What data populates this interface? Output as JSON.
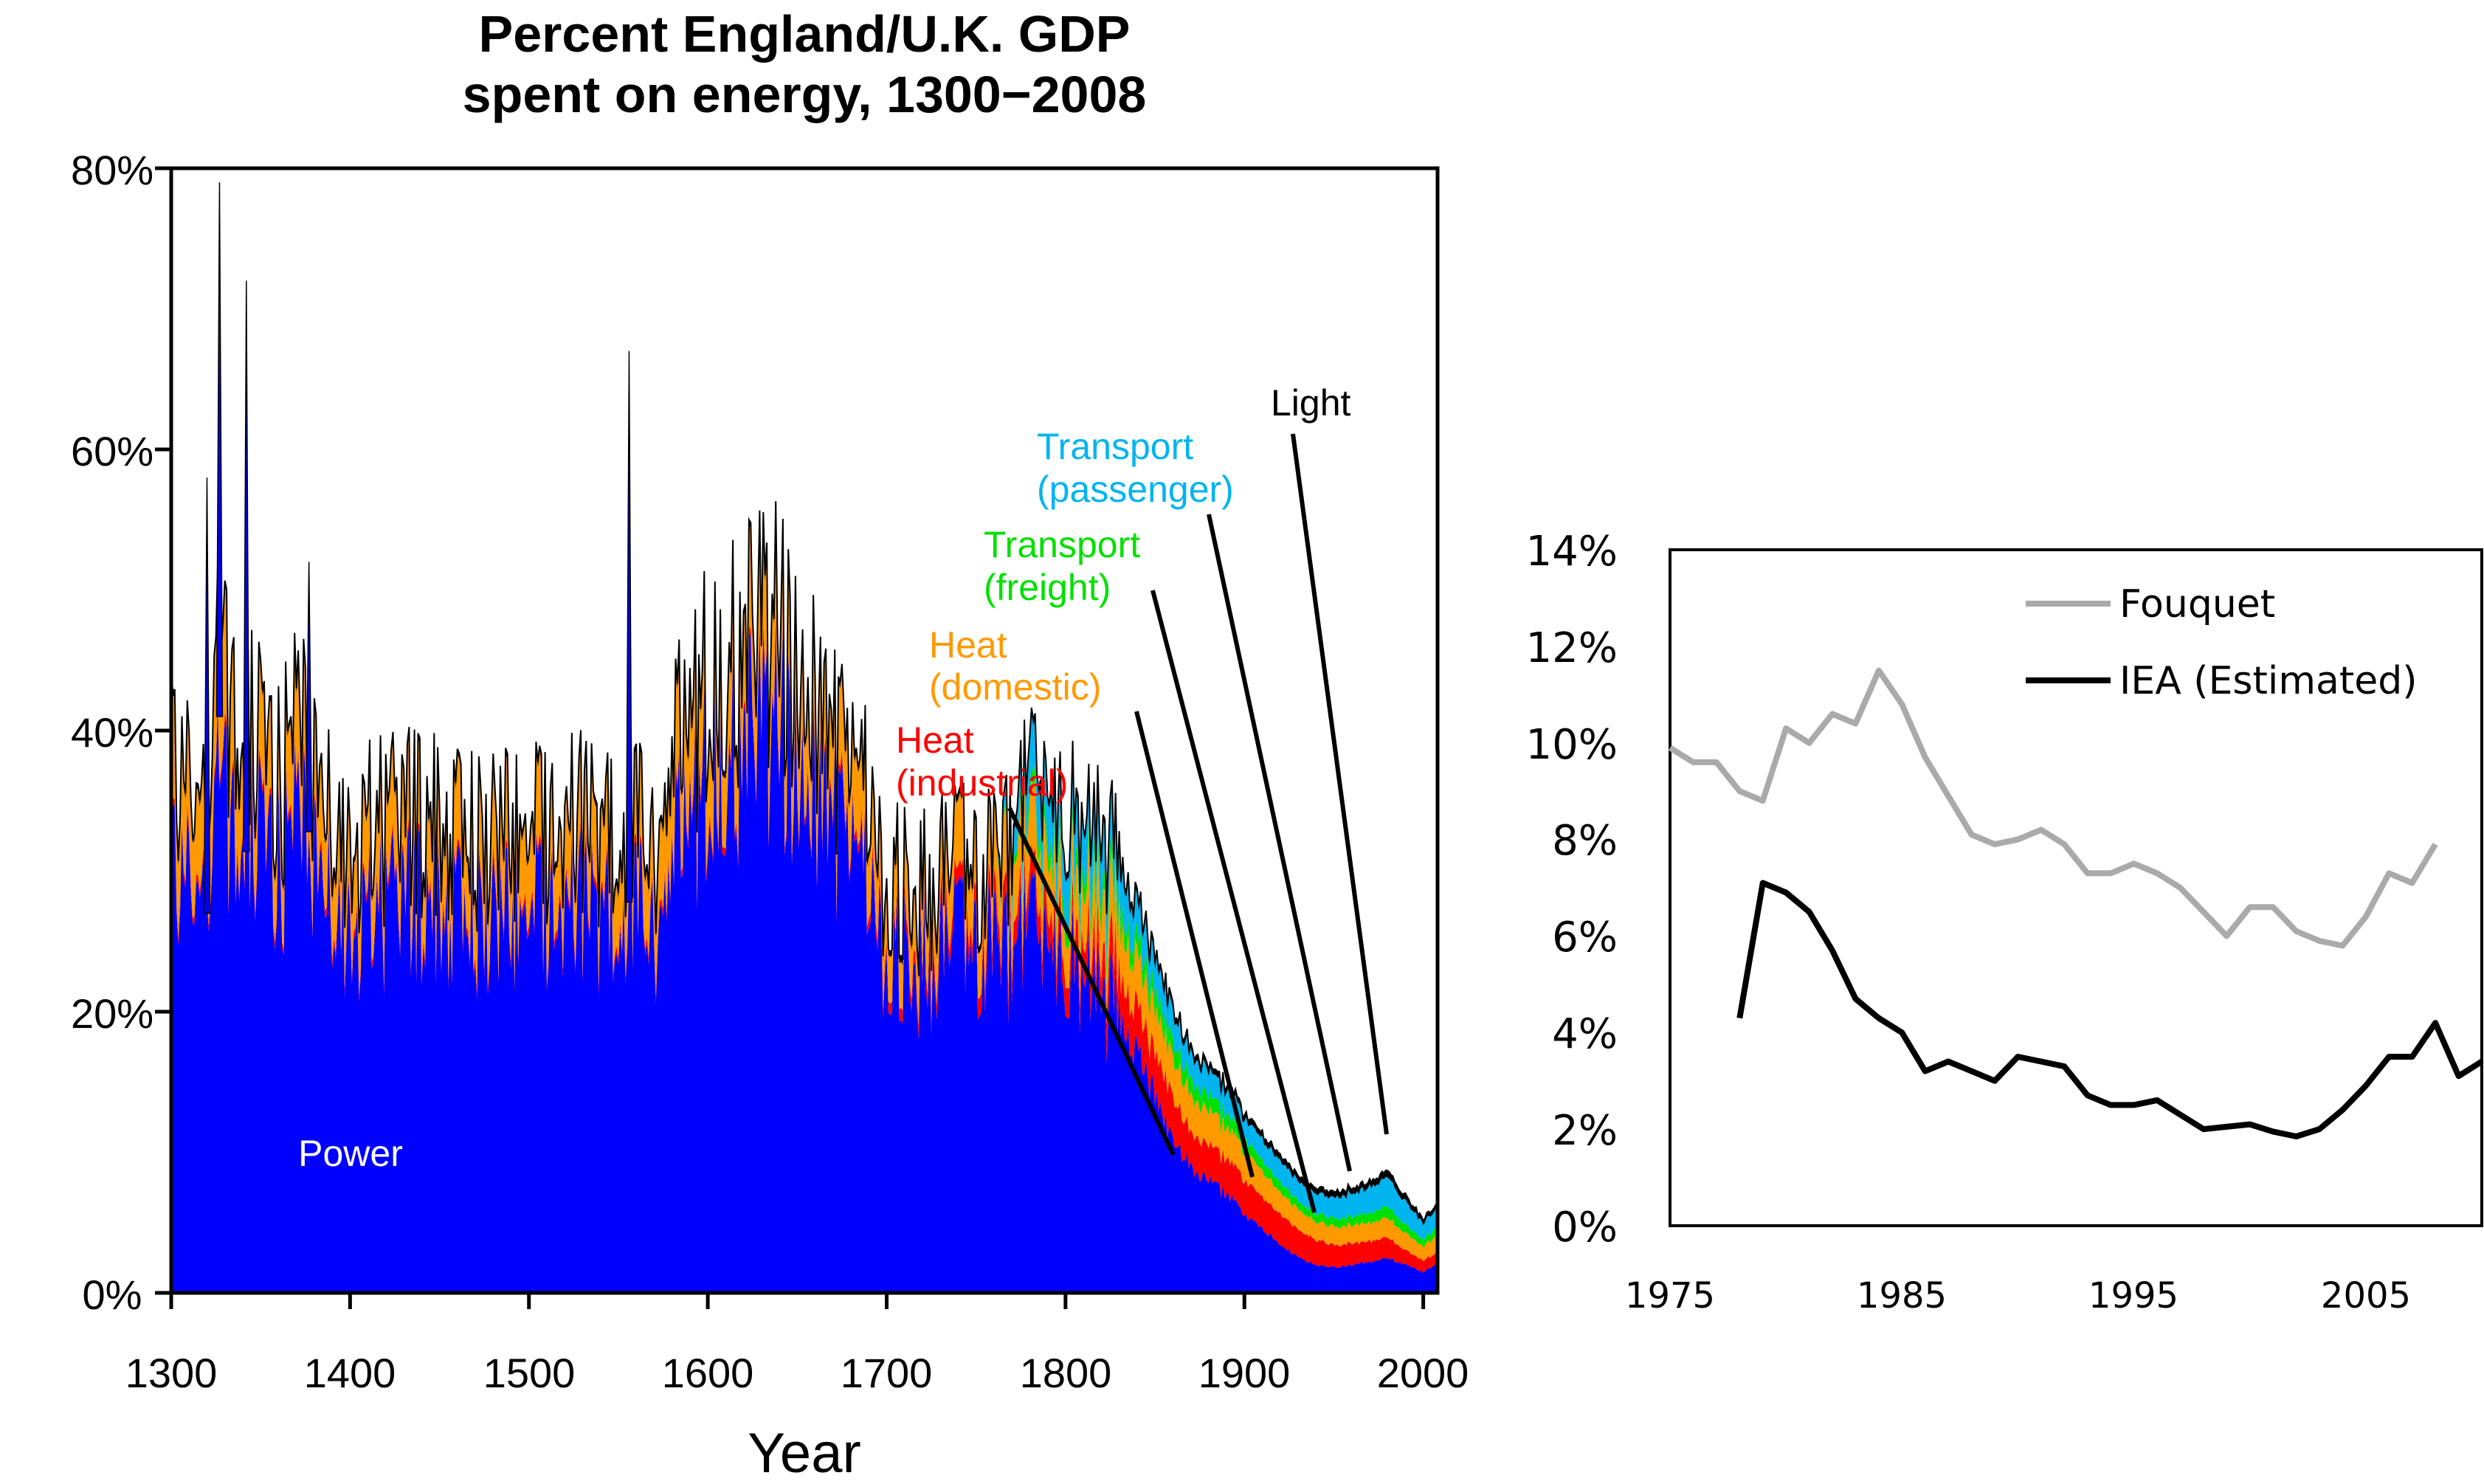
{
  "colors": {
    "power": "#0000ff",
    "heat_industrial": "#ff0000",
    "heat_domestic": "#ff9900",
    "transport_freight": "#00e000",
    "transport_passenger": "#00b4f0",
    "light": "#000000",
    "fouquet": "#aaaaaa",
    "iea": "#000000"
  },
  "chart_data": [
    {
      "type": "area",
      "title_line1": "Percent England/U.K. GDP",
      "title_line2": "spent on energy, 1300−2008",
      "xlabel": "Year",
      "ylabel": "",
      "xlim": [
        1300,
        2008
      ],
      "ylim": [
        0,
        80
      ],
      "x_ticks": [
        1300,
        1400,
        1500,
        1600,
        1700,
        1800,
        1900,
        2000
      ],
      "x_tick_labels": [
        "1300",
        "1400",
        "1500",
        "1600",
        "1700",
        "1800",
        "1900",
        "2000"
      ],
      "y_ticks": [
        0,
        20,
        40,
        60,
        80
      ],
      "y_tick_labels": [
        "0%",
        "20%",
        "40%",
        "60%",
        "80%"
      ],
      "stacked": true,
      "series_labels": {
        "power": "Power",
        "heat_industrial_1": "Heat",
        "heat_industrial_2": "(industrial)",
        "heat_domestic_1": "Heat",
        "heat_domestic_2": "(domestic)",
        "transport_freight_1": "Transport",
        "transport_freight_2": "(freight)",
        "transport_passenger_1": "Transport",
        "transport_passenger_2": "(passenger)",
        "light": "Light"
      },
      "anchors": {
        "x": [
          1300,
          1305,
          1310,
          1320,
          1327,
          1333,
          1340,
          1350,
          1360,
          1375,
          1385,
          1400,
          1420,
          1440,
          1460,
          1480,
          1500,
          1520,
          1540,
          1555,
          1565,
          1575,
          1585,
          1600,
          1620,
          1640,
          1655,
          1670,
          1685,
          1700,
          1720,
          1740,
          1760,
          1780,
          1800,
          1820,
          1830,
          1840,
          1850,
          1860,
          1870,
          1880,
          1890,
          1900,
          1910,
          1920,
          1930,
          1940,
          1950,
          1960,
          1970,
          1980,
          1990,
          2000,
          2008
        ],
        "power": [
          33,
          29,
          30,
          27,
          41,
          31,
          31,
          33,
          30,
          34,
          28,
          26,
          27,
          28,
          27,
          26,
          27,
          28,
          27,
          28,
          26,
          25,
          33,
          36,
          39,
          40,
          36,
          34,
          30,
          24,
          23,
          25,
          24,
          25,
          24,
          21,
          20,
          17,
          14,
          11,
          9,
          8,
          7,
          5.5,
          4.5,
          3.5,
          2.5,
          2.0,
          1.8,
          2.0,
          2.2,
          2.5,
          2.0,
          1.5,
          2.0
        ],
        "heat_industrial": [
          0.5,
          0.5,
          0.5,
          0.5,
          0.5,
          0.5,
          0.5,
          0.5,
          0.5,
          0.5,
          0.5,
          0.5,
          0.5,
          0.5,
          0.5,
          0.5,
          0.5,
          0.5,
          0.5,
          0.5,
          0.5,
          0.5,
          0.5,
          0.5,
          0.5,
          0.5,
          0.5,
          0.5,
          0.6,
          0.8,
          1.0,
          1.2,
          1.5,
          1.8,
          2.0,
          2.5,
          3.0,
          3.0,
          3.0,
          3.0,
          2.5,
          2.5,
          2.5,
          2.4,
          2.3,
          2.2,
          2.0,
          1.8,
          1.6,
          1.5,
          1.5,
          1.5,
          1.0,
          0.8,
          0.8
        ],
        "heat_domestic": [
          7,
          6,
          6,
          6,
          9,
          7,
          6,
          6,
          5,
          6,
          5,
          5,
          5,
          5,
          5,
          5,
          5,
          5,
          5,
          5,
          5,
          5,
          6,
          6,
          6,
          6,
          5.5,
          5,
          5,
          4,
          4,
          4,
          4,
          4,
          3.5,
          3.5,
          3.5,
          3.3,
          3.0,
          2.8,
          2.6,
          2.4,
          2.2,
          2.0,
          1.8,
          1.6,
          1.4,
          1.3,
          1.3,
          1.3,
          1.3,
          1.4,
          1.2,
          1.0,
          1.2
        ],
        "transport_freight": [
          0,
          0,
          0,
          0,
          0,
          0,
          0,
          0,
          0,
          0,
          0,
          0,
          0,
          0,
          0,
          0,
          0,
          0,
          0,
          0,
          0,
          0,
          0,
          0,
          0,
          0,
          0,
          0,
          0,
          0,
          0,
          0,
          0,
          1.0,
          1.2,
          1.3,
          1.3,
          1.3,
          1.3,
          1.2,
          1.2,
          1.1,
          1.0,
          0.9,
          0.8,
          0.7,
          0.6,
          0.6,
          0.6,
          0.6,
          0.7,
          0.8,
          0.6,
          0.5,
          0.6
        ],
        "transport_passenger": [
          0,
          0,
          0,
          0,
          0,
          0,
          0,
          0,
          0,
          0,
          0,
          0,
          0,
          0,
          0,
          0,
          0,
          0,
          0,
          0,
          0,
          0,
          0,
          0,
          0,
          0,
          0,
          0,
          0,
          0,
          0,
          0,
          0,
          3.5,
          3.5,
          3.5,
          3.0,
          2.5,
          2.2,
          2.0,
          1.8,
          1.7,
          1.6,
          1.5,
          1.5,
          1.5,
          1.4,
          1.4,
          1.5,
          1.6,
          1.8,
          2.0,
          1.6,
          1.2,
          1.3
        ],
        "light": [
          0.4,
          0.4,
          0.4,
          0.4,
          0.4,
          0.4,
          0.4,
          0.4,
          0.4,
          0.4,
          0.4,
          0.4,
          0.4,
          0.4,
          0.4,
          0.4,
          0.4,
          0.4,
          0.4,
          0.4,
          0.4,
          0.4,
          0.4,
          0.4,
          0.4,
          0.4,
          0.4,
          0.4,
          0.4,
          0.4,
          0.4,
          0.4,
          0.4,
          0.4,
          0.4,
          0.4,
          0.4,
          0.4,
          0.4,
          0.4,
          0.4,
          0.4,
          0.4,
          0.4,
          0.4,
          0.4,
          0.4,
          0.4,
          0.4,
          0.4,
          0.4,
          0.5,
          0.4,
          0.3,
          0.3
        ]
      },
      "spikes": [
        {
          "x": 1327,
          "total": 79
        },
        {
          "x": 1342,
          "total": 72
        },
        {
          "x": 1556,
          "total": 67
        },
        {
          "x": 1320,
          "total": 58
        },
        {
          "x": 1377,
          "total": 52
        }
      ],
      "annotations": [
        {
          "label_key": "heat_industrial",
          "points_to_year": 1860,
          "points_to_value": 10
        },
        {
          "label_key": "heat_domestic",
          "points_to_year": 1905,
          "points_to_value": 8.5
        },
        {
          "label_key": "transport_freight",
          "points_to_year": 1937,
          "points_to_value": 5.5
        },
        {
          "label_key": "transport_passenger",
          "points_to_year": 1958,
          "points_to_value": 8
        },
        {
          "label_key": "light",
          "points_to_year": 1980,
          "points_to_value": 11.5
        }
      ]
    },
    {
      "type": "line",
      "title": "",
      "xlabel": "",
      "ylabel": "",
      "xlim": [
        1975,
        2010
      ],
      "ylim": [
        0,
        14
      ],
      "x_ticks": [
        1975,
        1985,
        1995,
        2005
      ],
      "x_tick_labels": [
        "1975",
        "1985",
        "1995",
        "2005"
      ],
      "y_ticks": [
        0,
        2,
        4,
        6,
        8,
        10,
        12,
        14
      ],
      "y_tick_labels": [
        "0%",
        "2%",
        "4%",
        "6%",
        "8%",
        "10%",
        "12%",
        "14%"
      ],
      "legend_position": "top-right",
      "series": [
        {
          "name": "Fouquet",
          "x": [
            1975,
            1976,
            1977,
            1978,
            1979,
            1980,
            1981,
            1982,
            1983,
            1984,
            1985,
            1986,
            1987,
            1988,
            1989,
            1990,
            1991,
            1992,
            1993,
            1994,
            1995,
            1996,
            1997,
            1998,
            1999,
            2000,
            2001,
            2002,
            2003,
            2004,
            2005,
            2006,
            2007,
            2008
          ],
          "values": [
            9.9,
            9.6,
            9.6,
            9.0,
            8.8,
            10.3,
            10.0,
            10.6,
            10.4,
            11.5,
            10.8,
            9.7,
            8.9,
            8.1,
            7.9,
            8.0,
            8.2,
            7.9,
            7.3,
            7.3,
            7.5,
            7.3,
            7.0,
            6.5,
            6.0,
            6.6,
            6.6,
            6.1,
            5.9,
            5.8,
            6.4,
            7.3,
            7.1,
            7.9
          ]
        },
        {
          "name": "IEA (Estimated)",
          "x": [
            1978,
            1979,
            1980,
            1981,
            1982,
            1983,
            1984,
            1985,
            1986,
            1987,
            1988,
            1989,
            1990,
            1991,
            1992,
            1993,
            1994,
            1995,
            1996,
            1997,
            1998,
            1999,
            2000,
            2001,
            2002,
            2003,
            2004,
            2005,
            2006,
            2007,
            2008,
            2009,
            2010
          ],
          "values": [
            4.3,
            7.1,
            6.9,
            6.5,
            5.7,
            4.7,
            4.3,
            4.0,
            3.2,
            3.4,
            3.2,
            3.0,
            3.5,
            3.4,
            3.3,
            2.7,
            2.5,
            2.5,
            2.6,
            2.3,
            2.0,
            2.05,
            2.1,
            1.95,
            1.85,
            2.0,
            2.4,
            2.9,
            3.5,
            3.5,
            4.2,
            3.1,
            3.4
          ]
        }
      ]
    }
  ]
}
